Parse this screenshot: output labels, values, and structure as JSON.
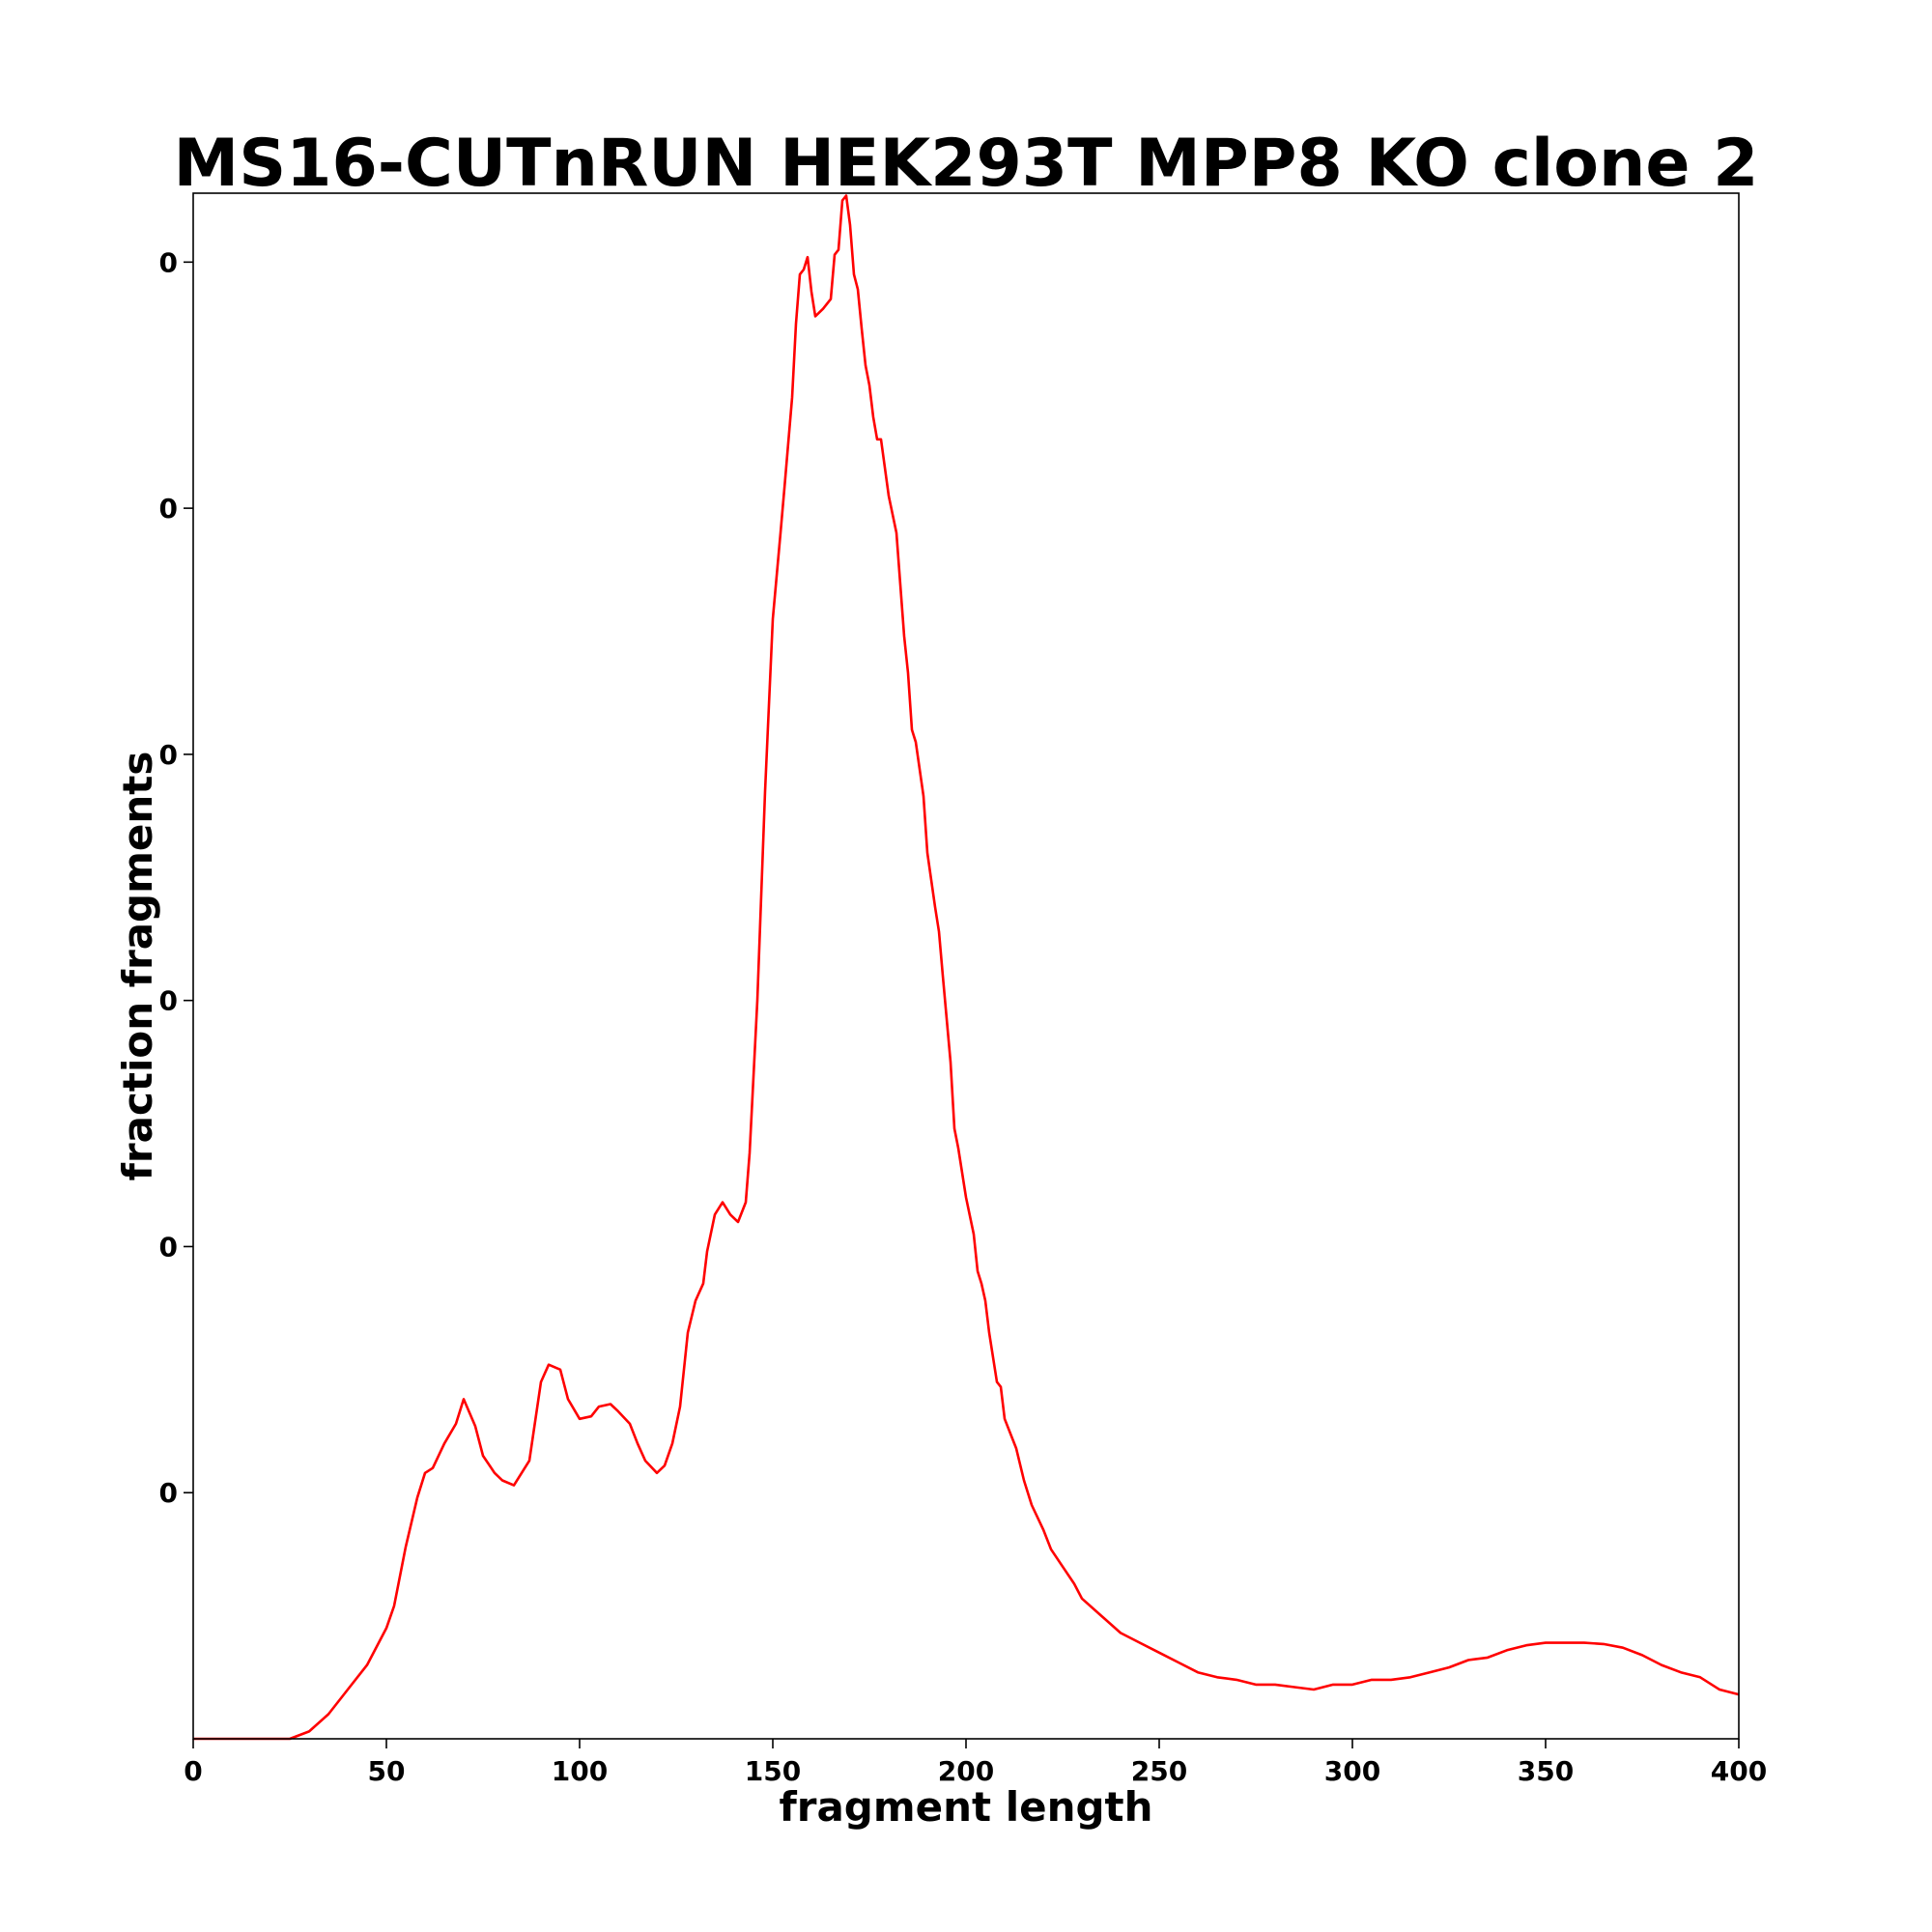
{
  "chart_data": {
    "type": "line",
    "title": "MS16-CUTnRUN HEK293T MPP8 KO clone 2",
    "xlabel": "fragment length",
    "ylabel": "fraction fragments",
    "xlim": [
      0,
      400
    ],
    "ylim": [
      0,
      0.0157
    ],
    "xticks": [
      0,
      50,
      100,
      150,
      200,
      250,
      300,
      350,
      400
    ],
    "xtick_labels": [
      "0",
      "50",
      "100",
      "150",
      "200",
      "250",
      "300",
      "350",
      "400"
    ],
    "yticks": [
      0.0025,
      0.005,
      0.0075,
      0.01,
      0.0125,
      0.015
    ],
    "ytick_labels": [
      "0",
      "0",
      "0",
      "0",
      "0",
      "0"
    ],
    "grid": false,
    "series": [
      {
        "color": "#ff0000",
        "x": [
          0,
          25,
          30,
          35,
          40,
          45,
          50,
          52,
          55,
          58,
          60,
          62,
          65,
          68,
          70,
          73,
          75,
          78,
          80,
          83,
          85,
          87,
          90,
          92,
          95,
          97,
          100,
          103,
          105,
          108,
          110,
          113,
          115,
          117,
          120,
          122,
          124,
          126,
          128,
          130,
          132,
          133,
          135,
          137,
          139,
          141,
          143,
          144,
          146,
          148,
          150,
          152,
          153,
          155,
          156,
          157,
          158,
          159,
          160,
          161,
          163,
          165,
          166,
          167,
          168,
          169,
          170,
          171,
          172,
          173,
          174,
          175,
          176,
          177,
          178,
          180,
          182,
          184,
          185,
          186,
          187,
          189,
          190,
          192,
          193,
          194,
          196,
          197,
          198,
          199,
          200,
          202,
          203,
          204,
          205,
          206,
          208,
          209,
          210,
          213,
          215,
          217,
          220,
          222,
          225,
          228,
          230,
          235,
          240,
          245,
          250,
          255,
          260,
          265,
          270,
          275,
          280,
          285,
          290,
          295,
          300,
          305,
          310,
          315,
          320,
          325,
          330,
          335,
          340,
          345,
          350,
          355,
          360,
          365,
          370,
          375,
          380,
          385,
          390,
          395,
          400
        ],
        "y": [
          0,
          0,
          7.5e-05,
          0.00025,
          0.0005,
          0.00075,
          0.001125,
          0.00135,
          0.00195,
          0.00245,
          0.0027,
          0.00275,
          0.003,
          0.0032,
          0.00345,
          0.003175,
          0.002875,
          0.0027,
          0.002625,
          0.002575,
          0.0027,
          0.002825,
          0.003625,
          0.0038,
          0.00375,
          0.00345,
          0.00325,
          0.003275,
          0.003375,
          0.0034,
          0.003325,
          0.0032,
          0.003,
          0.002825,
          0.0027,
          0.002775,
          0.003,
          0.003375,
          0.004125,
          0.00445,
          0.004625,
          0.00495,
          0.005325,
          0.00545,
          0.005325,
          0.00525,
          0.00545,
          0.00595,
          0.0075,
          0.009625,
          0.011375,
          0.01225,
          0.0127,
          0.013625,
          0.014375,
          0.014875,
          0.014925,
          0.01505,
          0.0147,
          0.01445,
          0.014525,
          0.014625,
          0.015075,
          0.015125,
          0.015625,
          0.015675,
          0.015375,
          0.014875,
          0.014725,
          0.014325,
          0.01395,
          0.01375,
          0.013425,
          0.0132,
          0.0132,
          0.012625,
          0.01225,
          0.0112,
          0.010825,
          0.01025,
          0.010125,
          0.009575,
          0.009,
          0.00845,
          0.0082,
          0.00775,
          0.006875,
          0.0062,
          0.006,
          0.00575,
          0.0055,
          0.005125,
          0.00475,
          0.004625,
          0.00445,
          0.004125,
          0.003625,
          0.003575,
          0.00325,
          0.00295,
          0.002625,
          0.002375,
          0.002125,
          0.001925,
          0.00175,
          0.001575,
          0.001425,
          0.00125,
          0.001075,
          0.000975,
          0.000875,
          0.000775,
          0.000675,
          0.000625,
          0.0006,
          0.00055,
          0.00055,
          0.000525,
          0.0005,
          0.00055,
          0.00055,
          0.0006,
          0.0006,
          0.000625,
          0.000675,
          0.000725,
          0.0008,
          0.000825,
          0.0009,
          0.00095,
          0.000975,
          0.000975,
          0.000975,
          0.000963,
          0.000925,
          0.00085,
          0.00075,
          0.000675,
          0.000625,
          0.0005,
          0.00045
        ]
      }
    ]
  }
}
